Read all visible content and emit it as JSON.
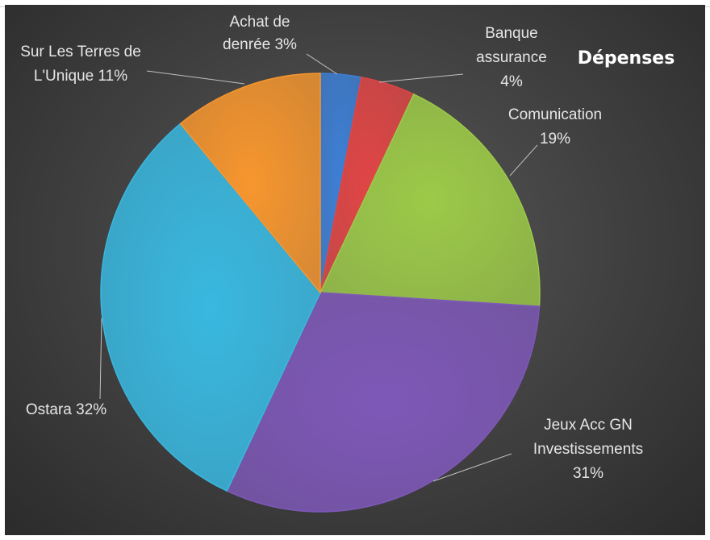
{
  "chart_data": {
    "type": "pie",
    "title": "Dépenses",
    "slices": [
      {
        "label": "Achat de denrée",
        "value": 3,
        "color": "#3d7fd6"
      },
      {
        "label": "Banque assurance",
        "value": 4,
        "color": "#e04545"
      },
      {
        "label": "Comunication",
        "value": 19,
        "color": "#9cca48"
      },
      {
        "label": "Jeux Acc GN Investissements",
        "value": 31,
        "color": "#7e58b8"
      },
      {
        "label": "Ostara",
        "value": 32,
        "color": "#39b8e0"
      },
      {
        "label": "Sur Les Terres de L'Unique",
        "value": 11,
        "color": "#f7962e"
      }
    ],
    "data_labels": [
      [
        "Achat de",
        "denrée 3%"
      ],
      [
        "Banque",
        "assurance",
        "4%"
      ],
      [
        "Comunication",
        "19%"
      ],
      [
        "Jeux Acc GN",
        "Investissements",
        "31%"
      ],
      [
        "Ostara 32%"
      ],
      [
        "Sur Les Terres de",
        "L'Unique 11%"
      ]
    ]
  }
}
